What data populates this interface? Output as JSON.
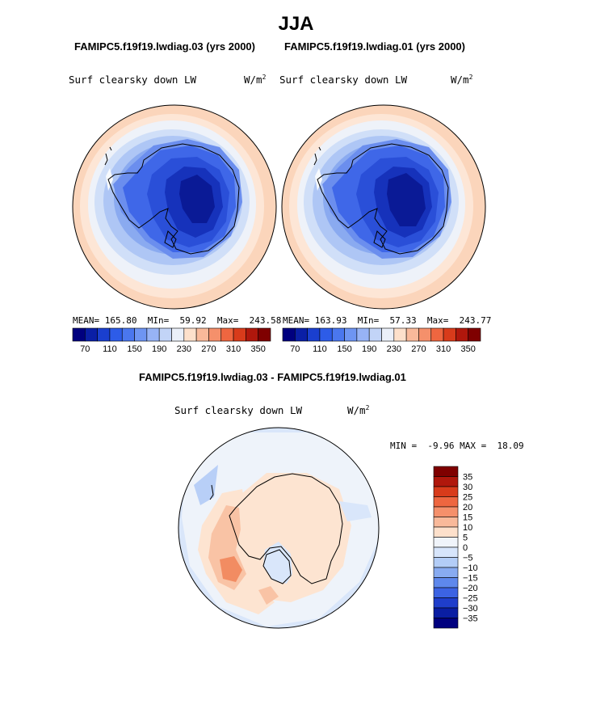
{
  "page_title": "JJA",
  "chart_data": [
    {
      "type": "heatmap",
      "projection": "south-polar stereographic",
      "title": "FAMIPC5.f19f19.lwdiag.03 (yrs 2000)",
      "field": "Surf clearsky down LW",
      "units": "W/m",
      "units_exp": "2",
      "stats": {
        "mean_label": "MEAN=",
        "mean": "165.80",
        "min_label": "MIn=",
        "min": "59.92",
        "max_label": "Max=",
        "max": "243.58"
      },
      "colorbar": {
        "orientation": "horizontal",
        "levels": [
          70,
          90,
          110,
          130,
          150,
          170,
          190,
          210,
          230,
          250,
          270,
          290,
          310,
          330,
          350
        ],
        "tick_labels": [
          "70",
          "110",
          "150",
          "190",
          "230",
          "270",
          "310",
          "350"
        ],
        "colors": [
          "#00007f",
          "#0a1fa6",
          "#1a3fcf",
          "#2d5ce8",
          "#4a77ee",
          "#6e95f2",
          "#97b3f5",
          "#c2d4f7",
          "#eaeff9",
          "#fde0cb",
          "#f9b99a",
          "#f5906b",
          "#ee6640",
          "#d83b1b",
          "#b0170c",
          "#7f0000"
        ]
      }
    },
    {
      "type": "heatmap",
      "projection": "south-polar stereographic",
      "title": "FAMIPC5.f19f19.lwdiag.01 (yrs 2000)",
      "field": "Surf clearsky down LW",
      "units": "W/m",
      "units_exp": "2",
      "stats": {
        "mean_label": "MEAN=",
        "mean": "163.93",
        "min_label": "MIn=",
        "min": "57.33",
        "max_label": "Max=",
        "max": "243.77"
      },
      "colorbar": {
        "orientation": "horizontal",
        "levels": [
          70,
          90,
          110,
          130,
          150,
          170,
          190,
          210,
          230,
          250,
          270,
          290,
          310,
          330,
          350
        ],
        "tick_labels": [
          "70",
          "110",
          "150",
          "190",
          "230",
          "270",
          "310",
          "350"
        ],
        "colors": [
          "#00007f",
          "#0a1fa6",
          "#1a3fcf",
          "#2d5ce8",
          "#4a77ee",
          "#6e95f2",
          "#97b3f5",
          "#c2d4f7",
          "#eaeff9",
          "#fde0cb",
          "#f9b99a",
          "#f5906b",
          "#ee6640",
          "#d83b1b",
          "#b0170c",
          "#7f0000"
        ]
      }
    },
    {
      "type": "heatmap",
      "projection": "south-polar stereographic",
      "title": "FAMIPC5.f19f19.lwdiag.03 - FAMIPC5.f19f19.lwdiag.01",
      "field": "Surf clearsky down LW",
      "units": "W/m",
      "units_exp": "2",
      "stats": {
        "min_label": "MIN =",
        "min": "-9.96",
        "max_label": "MAX =",
        "max": "18.09"
      },
      "colorbar": {
        "orientation": "vertical",
        "levels": [
          35,
          30,
          25,
          20,
          15,
          10,
          5,
          0,
          -5,
          -10,
          -15,
          -20,
          -25,
          -30,
          -35
        ],
        "tick_labels": [
          "35",
          "30",
          "25",
          "20",
          "15",
          "10",
          "5",
          "0",
          "−5",
          "−10",
          "−15",
          "−20",
          "−25",
          "−30",
          "−35"
        ],
        "colors": [
          "#7f0000",
          "#b0170c",
          "#d83b1b",
          "#ee6640",
          "#f5906b",
          "#f9b99a",
          "#fde0cb",
          "#f0f4fa",
          "#d7e5fb",
          "#b3cdf7",
          "#88abf1",
          "#5e88ec",
          "#3c63e3",
          "#1f3ecb",
          "#0a1ea3",
          "#00007f"
        ]
      }
    }
  ]
}
